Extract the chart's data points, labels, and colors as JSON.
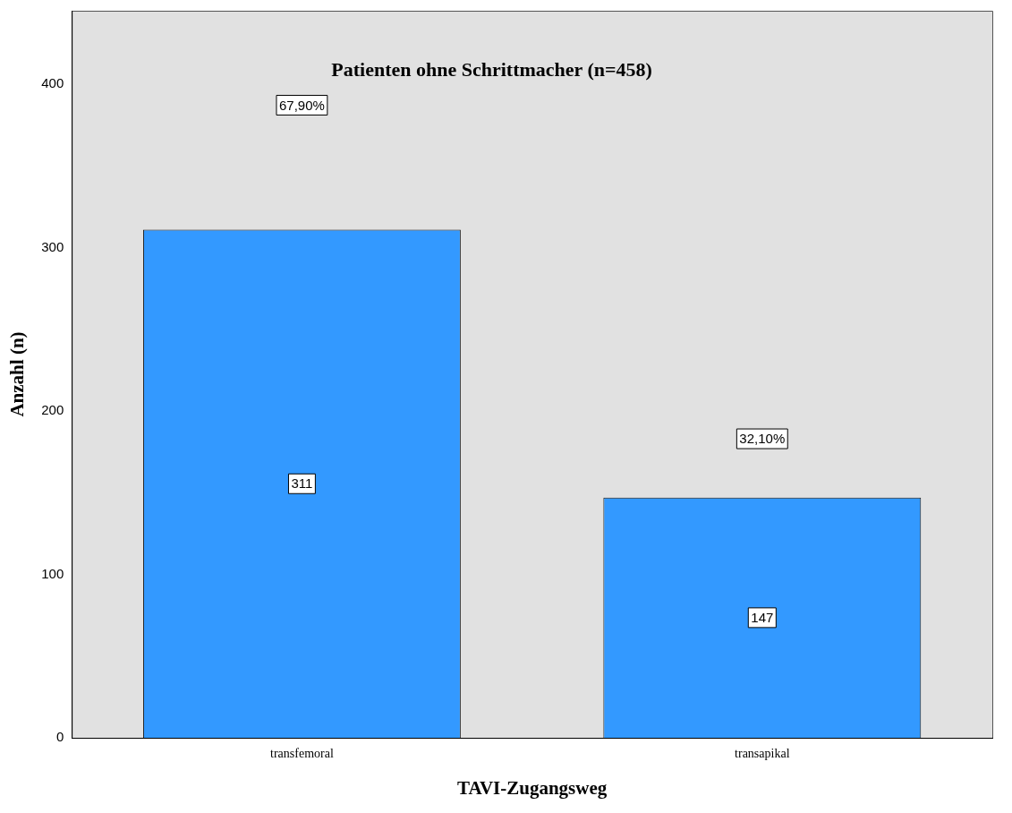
{
  "chart_data": {
    "type": "bar",
    "title": "Patienten ohne Schrittmacher (n=458)",
    "xlabel": "TAVI-Zugangsweg",
    "ylabel": "Anzahl (n)",
    "categories": [
      "transfemoral",
      "transapikal"
    ],
    "values": [
      311,
      147
    ],
    "color": "#3399ff",
    "ylim": [
      0,
      445
    ],
    "yticks": [
      0,
      100,
      200,
      300,
      400
    ],
    "data_labels": true,
    "grid": false,
    "legend": false,
    "annotations": [
      "67,90%",
      "32,10%"
    ]
  }
}
